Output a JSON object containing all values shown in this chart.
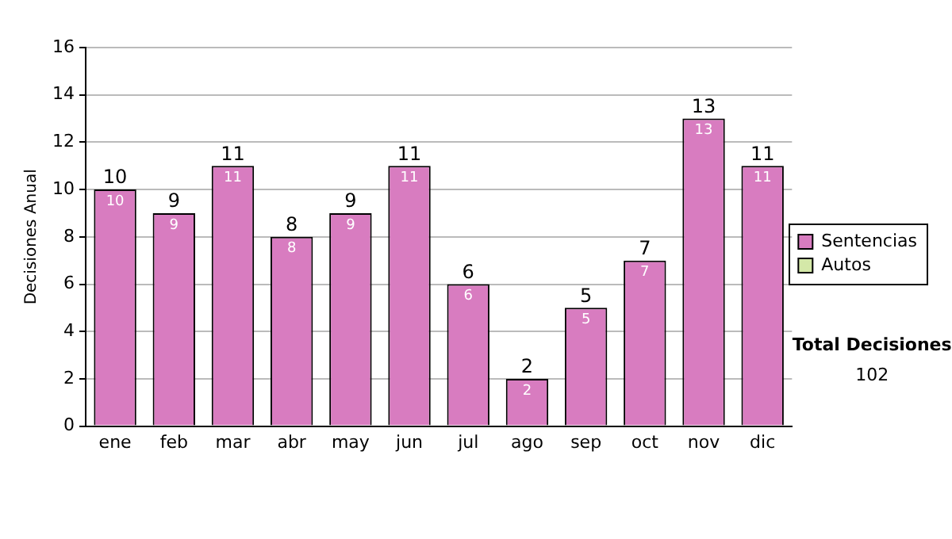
{
  "chart_data": {
    "type": "bar",
    "stacked": true,
    "ylabel": "Decisiones Anual",
    "categories": [
      "ene",
      "feb",
      "mar",
      "abr",
      "may",
      "jun",
      "jul",
      "ago",
      "sep",
      "oct",
      "nov",
      "dic"
    ],
    "series": [
      {
        "name": "Sentencias",
        "color": "#d87cc0",
        "values": [
          10,
          9,
          11,
          8,
          9,
          11,
          6,
          2,
          5,
          7,
          13,
          11
        ],
        "value_labels": [
          "10",
          "9",
          "11",
          "8",
          "9",
          "11",
          "6",
          "2",
          "5",
          "7",
          "13",
          "11"
        ]
      },
      {
        "name": "Autos",
        "color": "#d4e8a8",
        "values": [
          0,
          0,
          0,
          0,
          0,
          0,
          0,
          0,
          0,
          0,
          0,
          0
        ]
      }
    ],
    "totals": [
      "10",
      "9",
      "11",
      "8",
      "9",
      "11",
      "6",
      "2",
      "5",
      "7",
      "13",
      "11"
    ],
    "ylim": [
      0,
      16
    ],
    "yticks": [
      0,
      2,
      4,
      6,
      8,
      10,
      12,
      14,
      16
    ],
    "grid": "y",
    "legend": "right",
    "annotations": [
      "Total Decisiones",
      "102"
    ]
  }
}
